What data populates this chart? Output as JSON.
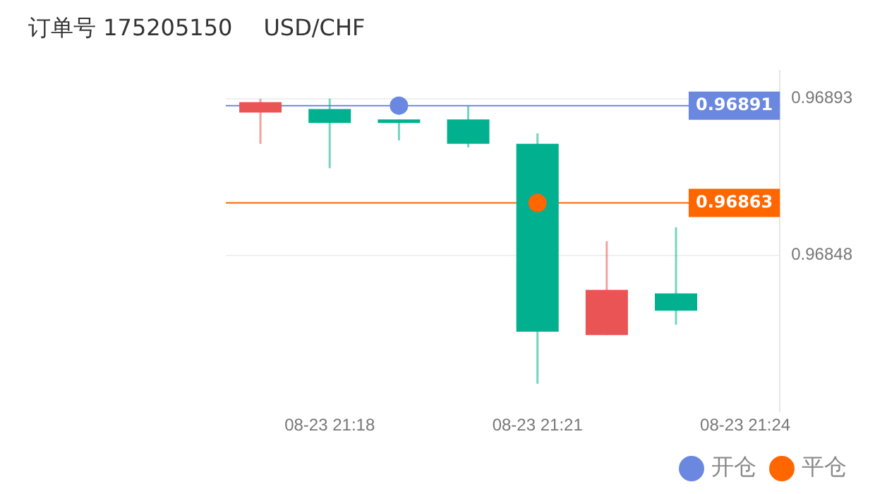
{
  "chart_data": {
    "type": "candlestick",
    "title": "订单号 175205150",
    "subtitle": "USD/CHF",
    "categories": [
      null,
      "08-23 21:18",
      null,
      null,
      "08-23 21:21",
      null,
      null,
      "08-23 21:24"
    ],
    "ohlc": [
      [
        0.96889,
        0.96893,
        0.9688,
        0.96892
      ],
      [
        0.9689,
        0.96893,
        0.96873,
        0.96886
      ],
      [
        0.96887,
        0.96887,
        0.96881,
        0.96886
      ],
      [
        0.96887,
        0.96891,
        0.96879,
        0.9688
      ],
      [
        0.9688,
        0.96883,
        0.96811,
        0.96826
      ],
      [
        0.96825,
        0.96852,
        0.96825,
        0.96838
      ],
      [
        0.96837,
        0.96856,
        0.96828,
        0.96832
      ],
      null
    ],
    "colors": [
      "#eb5454",
      "#00b08e",
      "#00b08e",
      "#00b08e",
      "#00b08e",
      "#eb5454",
      "#00b08e",
      null
    ],
    "series": [
      {
        "type": "scatter",
        "name": "开仓",
        "color": "#6b88e0",
        "values": [
          null,
          null,
          0.96891,
          null,
          null,
          null,
          null,
          null
        ]
      },
      {
        "type": "scatter",
        "name": "平仓",
        "color": "#ff6600",
        "values": [
          null,
          null,
          null,
          null,
          0.96863,
          null,
          null,
          null
        ]
      }
    ],
    "ylim": [
      0.96803,
      0.96901
    ],
    "yticks": [
      0.96848,
      0.96893
    ],
    "ref_lines": [
      {
        "axis": "y",
        "value": 0.96891,
        "label": "0.96891",
        "color": "#6b88e0"
      },
      {
        "axis": "y",
        "value": 0.96863,
        "label": "0.96863",
        "color": "#ff6600"
      }
    ],
    "grid": "y",
    "legend": "bottom right",
    "marker": "circle"
  }
}
